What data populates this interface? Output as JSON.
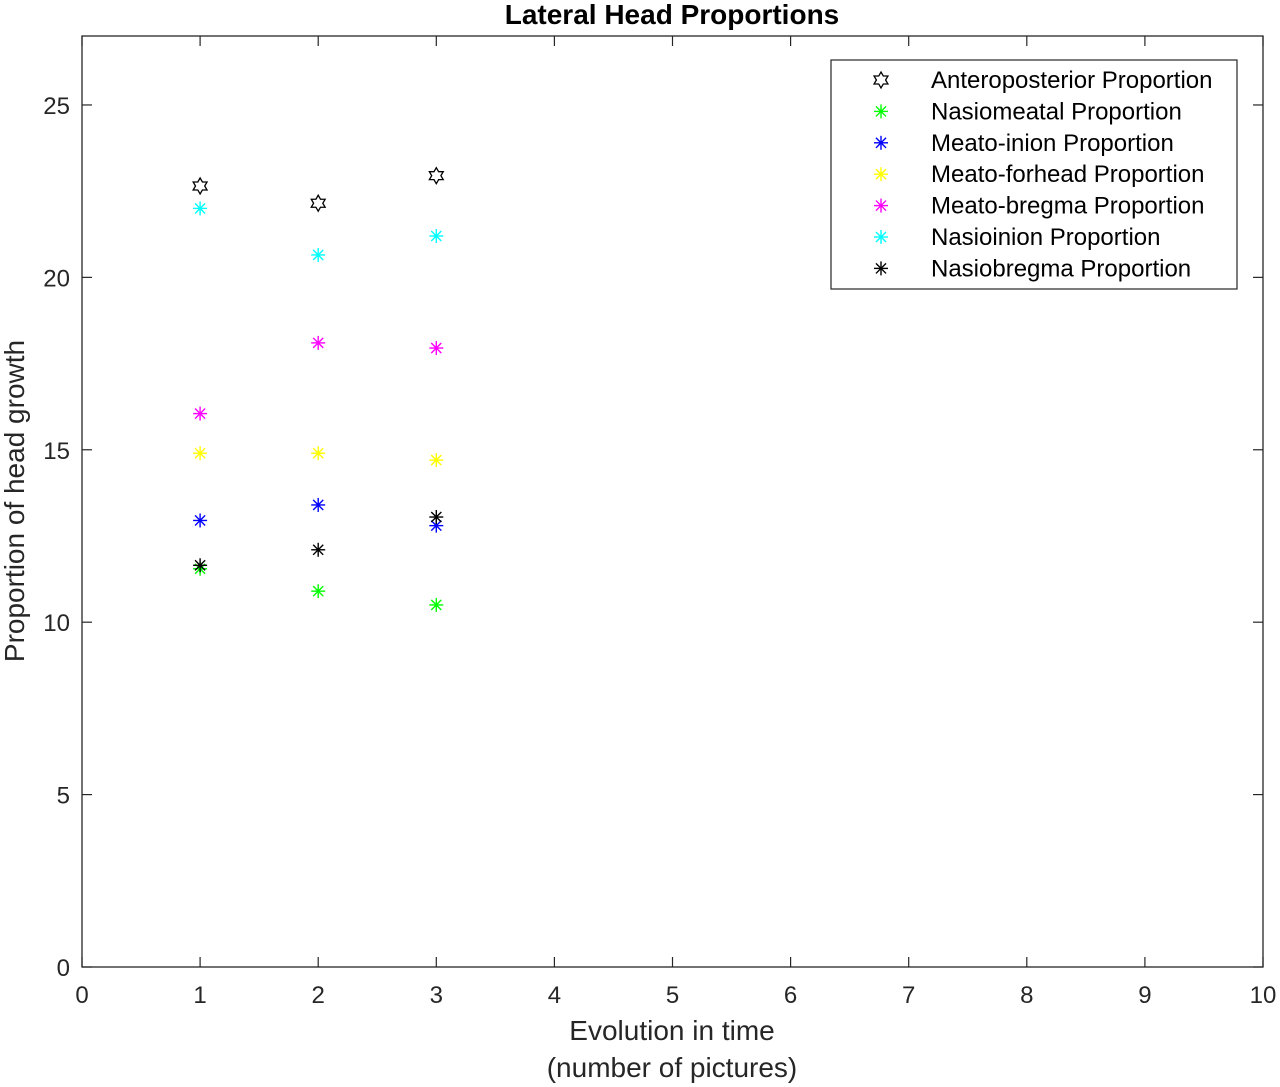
{
  "chart_data": {
    "type": "scatter",
    "title": "Lateral Head Proportions",
    "xlabel_lines": [
      "Evolution in time",
      "(number of pictures)"
    ],
    "ylabel": "Proportion of head growth",
    "xlim": [
      0,
      10
    ],
    "ylim": [
      0,
      27
    ],
    "xticks": [
      0,
      1,
      2,
      3,
      4,
      5,
      6,
      7,
      8,
      9,
      10
    ],
    "yticks": [
      0,
      5,
      10,
      15,
      20,
      25
    ],
    "grid": false,
    "legend_position": "top-right",
    "x": [
      1,
      2,
      3
    ],
    "series": [
      {
        "name": "Anteroposterior Proportion",
        "marker": "hexagram",
        "color": "#000000",
        "values": [
          22.65,
          22.15,
          22.95
        ]
      },
      {
        "name": "Nasiomeatal Proportion",
        "marker": "asterisk",
        "color": "#00ff00",
        "values": [
          11.55,
          10.9,
          10.5
        ]
      },
      {
        "name": "Meato-inion Proportion",
        "marker": "asterisk",
        "color": "#0000ff",
        "values": [
          12.95,
          13.4,
          12.8
        ]
      },
      {
        "name": "Meato-forhead Proportion",
        "marker": "asterisk",
        "color": "#ffff00",
        "values": [
          14.9,
          14.9,
          14.7
        ]
      },
      {
        "name": "Meato-bregma Proportion",
        "marker": "asterisk",
        "color": "#ff00ff",
        "values": [
          16.05,
          18.1,
          17.95
        ]
      },
      {
        "name": "Nasioinion Proportion",
        "marker": "asterisk",
        "color": "#00ffff",
        "values": [
          22.0,
          20.65,
          21.2
        ]
      },
      {
        "name": "Nasiobregma Proportion",
        "marker": "asterisk",
        "color": "#000000",
        "values": [
          11.65,
          12.1,
          13.05
        ]
      }
    ]
  }
}
